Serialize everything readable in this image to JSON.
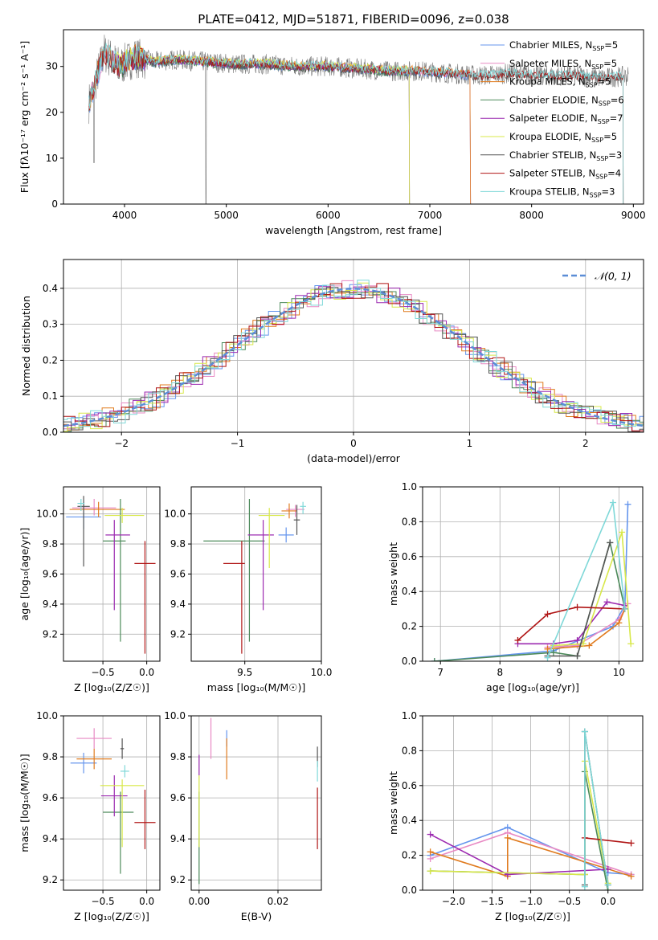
{
  "title": "PLATE=0412, MJD=51871, FIBERID=0096, z=0.038",
  "colors": {
    "chabrier_miles": "#6495ed",
    "salpeter_miles": "#e88ac4",
    "kroupa_miles": "#e07b1f",
    "chabrier_elodie": "#4c8a5a",
    "salpeter_elodie": "#9c2ab0",
    "kroupa_elodie": "#d8e84a",
    "chabrier_stelib": "#555555",
    "salpeter_stelib": "#b01515",
    "kroupa_stelib": "#7fd8d8"
  },
  "chart_data": [
    {
      "type": "line",
      "id": "spectrum",
      "xlabel": "wavelength [Angstrom, rest frame]",
      "ylabel": "Flux [fλ10⁻¹⁷ erg cm⁻² s⁻¹ A⁻¹]",
      "xlim": [
        3400,
        9100
      ],
      "ylim": [
        0,
        38
      ],
      "xticks": [
        "4000",
        "5000",
        "6000",
        "7000",
        "8000",
        "9000"
      ],
      "yticks": [
        "0",
        "10",
        "20",
        "30"
      ],
      "grid": false,
      "legend_position": "top-right",
      "legend": [
        "Chabrier MILES, N_SSP=5",
        "Salpeter MILES, N_SSP=5",
        "Kroupa MILES, N_SSP=5",
        "Chabrier ELODIE, N_SSP=6",
        "Salpeter ELODIE, N_SSP=7",
        "Kroupa ELODIE, N_SSP=5",
        "Chabrier STELIB, N_SSP=3",
        "Salpeter STELIB, N_SSP=4",
        "Kroupa STELIB, N_SSP=3"
      ],
      "data_approx": {
        "observed_x": [
          3650,
          3800,
          3950,
          4100,
          4300,
          4500,
          4800,
          5100,
          5400,
          5700,
          6000,
          6300,
          6600,
          6900,
          7200,
          7500,
          7800,
          8100,
          8400,
          8700,
          9000
        ],
        "observed_y": [
          22,
          33,
          30,
          32,
          31,
          31.5,
          31,
          30.5,
          30.5,
          30,
          30,
          29.5,
          29,
          29,
          28.5,
          28,
          28.5,
          28,
          28,
          27.5,
          28
        ],
        "models": [
          {
            "name": "Chabrier MILES",
            "x_range": [
              3650,
              7400
            ]
          },
          {
            "name": "Salpeter MILES",
            "x_range": [
              3650,
              7400
            ]
          },
          {
            "name": "Kroupa MILES",
            "x_range": [
              3650,
              7400
            ]
          },
          {
            "name": "Chabrier ELODIE",
            "x_range": [
              3900,
              6800
            ]
          },
          {
            "name": "Salpeter ELODIE",
            "x_range": [
              3900,
              6800
            ]
          },
          {
            "name": "Kroupa ELODIE",
            "x_range": [
              3900,
              6800
            ]
          },
          {
            "name": "Chabrier STELIB",
            "x_range": [
              3650,
              8900
            ]
          },
          {
            "name": "Salpeter STELIB",
            "x_range": [
              3650,
              8900
            ]
          },
          {
            "name": "Kroupa STELIB",
            "x_range": [
              3650,
              8900
            ]
          }
        ]
      }
    },
    {
      "type": "line",
      "id": "residuals",
      "xlabel": "(data-model)/error",
      "ylabel": "Normed distribution",
      "xlim": [
        -2.5,
        2.5
      ],
      "ylim": [
        0,
        0.48
      ],
      "xticks": [
        "−2",
        "−1",
        "0",
        "1",
        "2"
      ],
      "yticks": [
        "0.0",
        "0.1",
        "0.2",
        "0.3",
        "0.4"
      ],
      "grid": true,
      "legend_position": "top-right",
      "legend": [
        "𝒩(0, 1)"
      ],
      "reference_curve": "normal(0,1) density"
    },
    {
      "type": "scatter",
      "id": "age_vs_Z",
      "xlabel": "Z [log₁₀(Z/Z☉)]",
      "ylabel": "age  [log₁₀(age/yr)]",
      "xlim": [
        -0.95,
        0.15
      ],
      "ylim": [
        9.02,
        10.18
      ],
      "xticks": [
        "−0.5",
        "0.0"
      ],
      "yticks": [
        "9.2",
        "9.4",
        "9.6",
        "9.8",
        "10.0"
      ],
      "grid": true,
      "points": [
        {
          "model": "Chabrier MILES",
          "x": -0.72,
          "y": 9.98,
          "xerr": [
            0.2,
            0.2
          ],
          "yerr": [
            0.08,
            0.1
          ]
        },
        {
          "model": "Salpeter MILES",
          "x": -0.6,
          "y": 10.04,
          "xerr": [
            0.25,
            0.25
          ],
          "yerr": [
            0.05,
            0.06
          ]
        },
        {
          "model": "Kroupa MILES",
          "x": -0.55,
          "y": 10.03,
          "xerr": [
            0.33,
            0.3
          ],
          "yerr": [
            0.05,
            0.05
          ]
        },
        {
          "model": "Chabrier ELODIE",
          "x": -0.3,
          "y": 9.82,
          "xerr": [
            0.2,
            0.06
          ],
          "yerr": [
            0.67,
            0.28
          ]
        },
        {
          "model": "Salpeter ELODIE",
          "x": -0.37,
          "y": 9.86,
          "xerr": [
            0.1,
            0.18
          ],
          "yerr": [
            0.5,
            0.1
          ]
        },
        {
          "model": "Kroupa ELODIE",
          "x": -0.28,
          "y": 9.99,
          "xerr": [
            0.2,
            0.25
          ],
          "yerr": [
            0.05,
            0.05
          ]
        },
        {
          "model": "Chabrier STELIB",
          "x": -0.72,
          "y": 10.05,
          "xerr": [
            0.07,
            0.07
          ],
          "yerr": [
            0.4,
            0.07
          ]
        },
        {
          "model": "Salpeter STELIB",
          "x": -0.02,
          "y": 9.67,
          "xerr": [
            0.12,
            0.12
          ],
          "yerr": [
            0.6,
            0.15
          ]
        },
        {
          "model": "Kroupa STELIB",
          "x": -0.75,
          "y": 10.07,
          "xerr": [
            0.04,
            0.04
          ],
          "yerr": [
            0.05,
            0.03
          ]
        }
      ]
    },
    {
      "type": "scatter",
      "id": "age_vs_mass",
      "xlabel": "mass [log₁₀(M/M☉)]",
      "ylabel": "",
      "xlim": [
        9.15,
        10.0
      ],
      "ylim": [
        9.02,
        10.18
      ],
      "xticks": [
        "9.5",
        "10.0"
      ],
      "yticks": [
        "9.2",
        "9.4",
        "9.6",
        "9.8",
        "10.0"
      ],
      "grid": true,
      "points": [
        {
          "model": "Chabrier MILES",
          "x": 9.77,
          "y": 9.86,
          "xerr": [
            0.05,
            0.05
          ],
          "yerr": [
            0.05,
            0.05
          ]
        },
        {
          "model": "Salpeter MILES",
          "x": 9.83,
          "y": 10.03,
          "xerr": [
            0.06,
            0.06
          ],
          "yerr": [
            0.05,
            0.03
          ]
        },
        {
          "model": "Kroupa MILES",
          "x": 9.79,
          "y": 10.02,
          "xerr": [
            0.05,
            0.05
          ],
          "yerr": [
            0.05,
            0.05
          ]
        },
        {
          "model": "Chabrier ELODIE",
          "x": 9.53,
          "y": 9.82,
          "xerr": [
            0.3,
            0.1
          ],
          "yerr": [
            0.67,
            0.28
          ]
        },
        {
          "model": "Salpeter ELODIE",
          "x": 9.62,
          "y": 9.86,
          "xerr": [
            0.1,
            0.07
          ],
          "yerr": [
            0.5,
            0.1
          ]
        },
        {
          "model": "Kroupa ELODIE",
          "x": 9.66,
          "y": 9.99,
          "xerr": [
            0.07,
            0.1
          ],
          "yerr": [
            0.35,
            0.05
          ]
        },
        {
          "model": "Chabrier STELIB",
          "x": 9.84,
          "y": 9.96,
          "xerr": [
            0.02,
            0.02
          ],
          "yerr": [
            0.1,
            0.1
          ]
        },
        {
          "model": "Salpeter STELIB",
          "x": 9.48,
          "y": 9.67,
          "xerr": [
            0.12,
            0.02
          ],
          "yerr": [
            0.6,
            0.15
          ]
        },
        {
          "model": "Kroupa STELIB",
          "x": 9.88,
          "y": 10.05,
          "xerr": [
            0.02,
            0.02
          ],
          "yerr": [
            0.05,
            0.03
          ]
        }
      ]
    },
    {
      "type": "line",
      "id": "weight_vs_age",
      "xlabel": "age  [log₁₀(age/yr)]",
      "ylabel": "mass weight",
      "xlim": [
        6.7,
        10.4
      ],
      "ylim": [
        0,
        1.0
      ],
      "xticks": [
        "7",
        "8",
        "9",
        "10"
      ],
      "yticks": [
        "0.0",
        "0.2",
        "0.4",
        "0.6",
        "0.8",
        "1.0"
      ],
      "grid": true,
      "series": [
        {
          "model": "Chabrier MILES",
          "x": [
            6.9,
            8.9,
            9.9,
            10.1,
            10.15
          ],
          "y": [
            0.0,
            0.06,
            0.2,
            0.32,
            0.9
          ]
        },
        {
          "model": "Salpeter MILES",
          "x": [
            8.8,
            9.3,
            10.0,
            10.15
          ],
          "y": [
            0.08,
            0.09,
            0.24,
            0.33
          ]
        },
        {
          "model": "Kroupa MILES",
          "x": [
            8.8,
            9.5,
            10.0,
            10.1
          ],
          "y": [
            0.07,
            0.09,
            0.22,
            0.3
          ]
        },
        {
          "model": "Chabrier ELODIE",
          "x": [
            6.9,
            8.9,
            9.3,
            9.85,
            10.1
          ],
          "y": [
            0.0,
            0.05,
            0.03,
            0.68,
            0.3
          ]
        },
        {
          "model": "Salpeter ELODIE",
          "x": [
            8.3,
            8.9,
            9.3,
            9.8,
            10.1
          ],
          "y": [
            0.1,
            0.1,
            0.12,
            0.34,
            0.32
          ]
        },
        {
          "model": "Kroupa ELODIE",
          "x": [
            8.9,
            9.4,
            10.05,
            10.2
          ],
          "y": [
            0.09,
            0.1,
            0.74,
            0.1
          ]
        },
        {
          "model": "Chabrier STELIB",
          "x": [
            8.8,
            9.3,
            9.85
          ],
          "y": [
            0.03,
            0.03,
            0.68
          ]
        },
        {
          "model": "Salpeter STELIB",
          "x": [
            8.3,
            8.8,
            9.3,
            10.1
          ],
          "y": [
            0.12,
            0.27,
            0.31,
            0.3
          ]
        },
        {
          "model": "Kroupa STELIB",
          "x": [
            8.8,
            9.9,
            10.1
          ],
          "y": [
            0.02,
            0.91,
            0.3
          ]
        }
      ]
    },
    {
      "type": "scatter",
      "id": "mass_vs_Z",
      "xlabel": "Z [log₁₀(Z/Z☉)]",
      "ylabel": "mass [log₁₀(M/M☉)]",
      "xlim": [
        -0.95,
        0.15
      ],
      "ylim": [
        9.15,
        10.0
      ],
      "xticks": [
        "−0.5",
        "0.0"
      ],
      "yticks": [
        "9.2",
        "9.4",
        "9.6",
        "9.8",
        "10.0"
      ],
      "grid": true,
      "points": [
        {
          "model": "Chabrier MILES",
          "x": -0.72,
          "y": 9.77,
          "xerr": [
            0.15,
            0.15
          ],
          "yerr": [
            0.05,
            0.05
          ]
        },
        {
          "model": "Salpeter MILES",
          "x": -0.6,
          "y": 9.89,
          "xerr": [
            0.2,
            0.2
          ],
          "yerr": [
            0.05,
            0.05
          ]
        },
        {
          "model": "Kroupa MILES",
          "x": -0.6,
          "y": 9.79,
          "xerr": [
            0.2,
            0.2
          ],
          "yerr": [
            0.05,
            0.05
          ]
        },
        {
          "model": "Chabrier ELODIE",
          "x": -0.3,
          "y": 9.53,
          "xerr": [
            0.2,
            0.15
          ],
          "yerr": [
            0.3,
            0.1
          ]
        },
        {
          "model": "Salpeter ELODIE",
          "x": -0.37,
          "y": 9.61,
          "xerr": [
            0.15,
            0.15
          ],
          "yerr": [
            0.1,
            0.1
          ]
        },
        {
          "model": "Kroupa ELODIE",
          "x": -0.28,
          "y": 9.66,
          "xerr": [
            0.25,
            0.25
          ],
          "yerr": [
            0.3,
            0.03
          ]
        },
        {
          "model": "Chabrier STELIB",
          "x": -0.28,
          "y": 9.84,
          "xerr": [
            0.02,
            0.02
          ],
          "yerr": [
            0.05,
            0.05
          ]
        },
        {
          "model": "Salpeter STELIB",
          "x": -0.02,
          "y": 9.48,
          "xerr": [
            0.12,
            0.12
          ],
          "yerr": [
            0.13,
            0.16
          ]
        },
        {
          "model": "Kroupa STELIB",
          "x": -0.25,
          "y": 9.73,
          "xerr": [
            0.05,
            0.05
          ],
          "yerr": [
            0.03,
            0.03
          ]
        }
      ]
    },
    {
      "type": "scatter",
      "id": "mass_vs_EBV",
      "xlabel": "E(B-V)",
      "ylabel": "",
      "xlim": [
        -0.002,
        0.031
      ],
      "ylim": [
        9.15,
        10.0
      ],
      "xticks": [
        "0.00",
        "0.02"
      ],
      "yticks": [
        "9.2",
        "9.4",
        "9.6",
        "9.8",
        "10.0"
      ],
      "grid": true,
      "points": [
        {
          "model": "Chabrier MILES",
          "x": 0.007,
          "y": 9.89,
          "xerr": [
            0,
            0
          ],
          "yerr": [
            0.04,
            0.04
          ]
        },
        {
          "model": "Salpeter MILES",
          "x": 0.003,
          "y": 9.89,
          "xerr": [
            0,
            0
          ],
          "yerr": [
            0.1,
            0.1
          ]
        },
        {
          "model": "Kroupa MILES",
          "x": 0.007,
          "y": 9.79,
          "xerr": [
            0,
            0
          ],
          "yerr": [
            0.1,
            0.1
          ]
        },
        {
          "model": "Chabrier ELODIE",
          "x": 0.0,
          "y": 9.53,
          "xerr": [
            0,
            0
          ],
          "yerr": [
            0.35,
            0.1
          ]
        },
        {
          "model": "Salpeter ELODIE",
          "x": 0.0,
          "y": 9.76,
          "xerr": [
            0,
            0
          ],
          "yerr": [
            0.05,
            0.05
          ]
        },
        {
          "model": "Kroupa ELODIE",
          "x": 0.0,
          "y": 9.56,
          "xerr": [
            0,
            0
          ],
          "yerr": [
            0.2,
            0.15
          ]
        },
        {
          "model": "Chabrier STELIB",
          "x": 0.03,
          "y": 9.8,
          "xerr": [
            0,
            0
          ],
          "yerr": [
            0.05,
            0.05
          ]
        },
        {
          "model": "Salpeter STELIB",
          "x": 0.03,
          "y": 9.5,
          "xerr": [
            0,
            0
          ],
          "yerr": [
            0.15,
            0.15
          ]
        },
        {
          "model": "Kroupa STELIB",
          "x": 0.03,
          "y": 9.73,
          "xerr": [
            0,
            0
          ],
          "yerr": [
            0.05,
            0.05
          ]
        }
      ]
    },
    {
      "type": "line",
      "id": "weight_vs_Z",
      "xlabel": "Z [log₁₀(Z/Z☉)]",
      "ylabel": "mass weight",
      "xlim": [
        -2.4,
        0.45
      ],
      "ylim": [
        0,
        1.0
      ],
      "xticks": [
        "−2.0",
        "−1.5",
        "−1.0",
        "−0.5",
        "0.0"
      ],
      "yticks": [
        "0.0",
        "0.2",
        "0.4",
        "0.6",
        "0.8",
        "1.0"
      ],
      "grid": true,
      "series": [
        {
          "model": "Chabrier MILES",
          "x": [
            -2.3,
            -1.3,
            0.0,
            0.3
          ],
          "y": [
            0.2,
            0.36,
            0.1,
            0.09
          ]
        },
        {
          "model": "Salpeter MILES",
          "x": [
            -2.3,
            -1.3,
            0.3
          ],
          "y": [
            0.18,
            0.33,
            0.09
          ]
        },
        {
          "model": "Kroupa MILES",
          "x": [
            -2.3,
            -1.3,
            -1.3,
            0.3
          ],
          "y": [
            0.22,
            0.08,
            0.3,
            0.08
          ]
        },
        {
          "model": "Chabrier ELODIE",
          "x": [
            -2.3,
            -0.3,
            -0.3,
            0.0
          ],
          "y": [
            0.11,
            0.09,
            0.68,
            0.0
          ]
        },
        {
          "model": "Salpeter ELODIE",
          "x": [
            -2.3,
            -1.3,
            0.0
          ],
          "y": [
            0.32,
            0.09,
            0.12
          ]
        },
        {
          "model": "Kroupa ELODIE",
          "x": [
            -2.3,
            -0.3,
            -0.3,
            0.0
          ],
          "y": [
            0.11,
            0.09,
            0.74,
            0.04
          ]
        },
        {
          "model": "Chabrier STELIB",
          "x": [
            -0.3,
            -0.3,
            0.0
          ],
          "y": [
            0.03,
            0.91,
            0.03
          ]
        },
        {
          "model": "Salpeter STELIB",
          "x": [
            -0.3,
            0.3
          ],
          "y": [
            0.3,
            0.27
          ]
        },
        {
          "model": "Kroupa STELIB",
          "x": [
            -0.3,
            -0.3,
            0.0
          ],
          "y": [
            0.02,
            0.91,
            0.03
          ]
        }
      ]
    }
  ]
}
